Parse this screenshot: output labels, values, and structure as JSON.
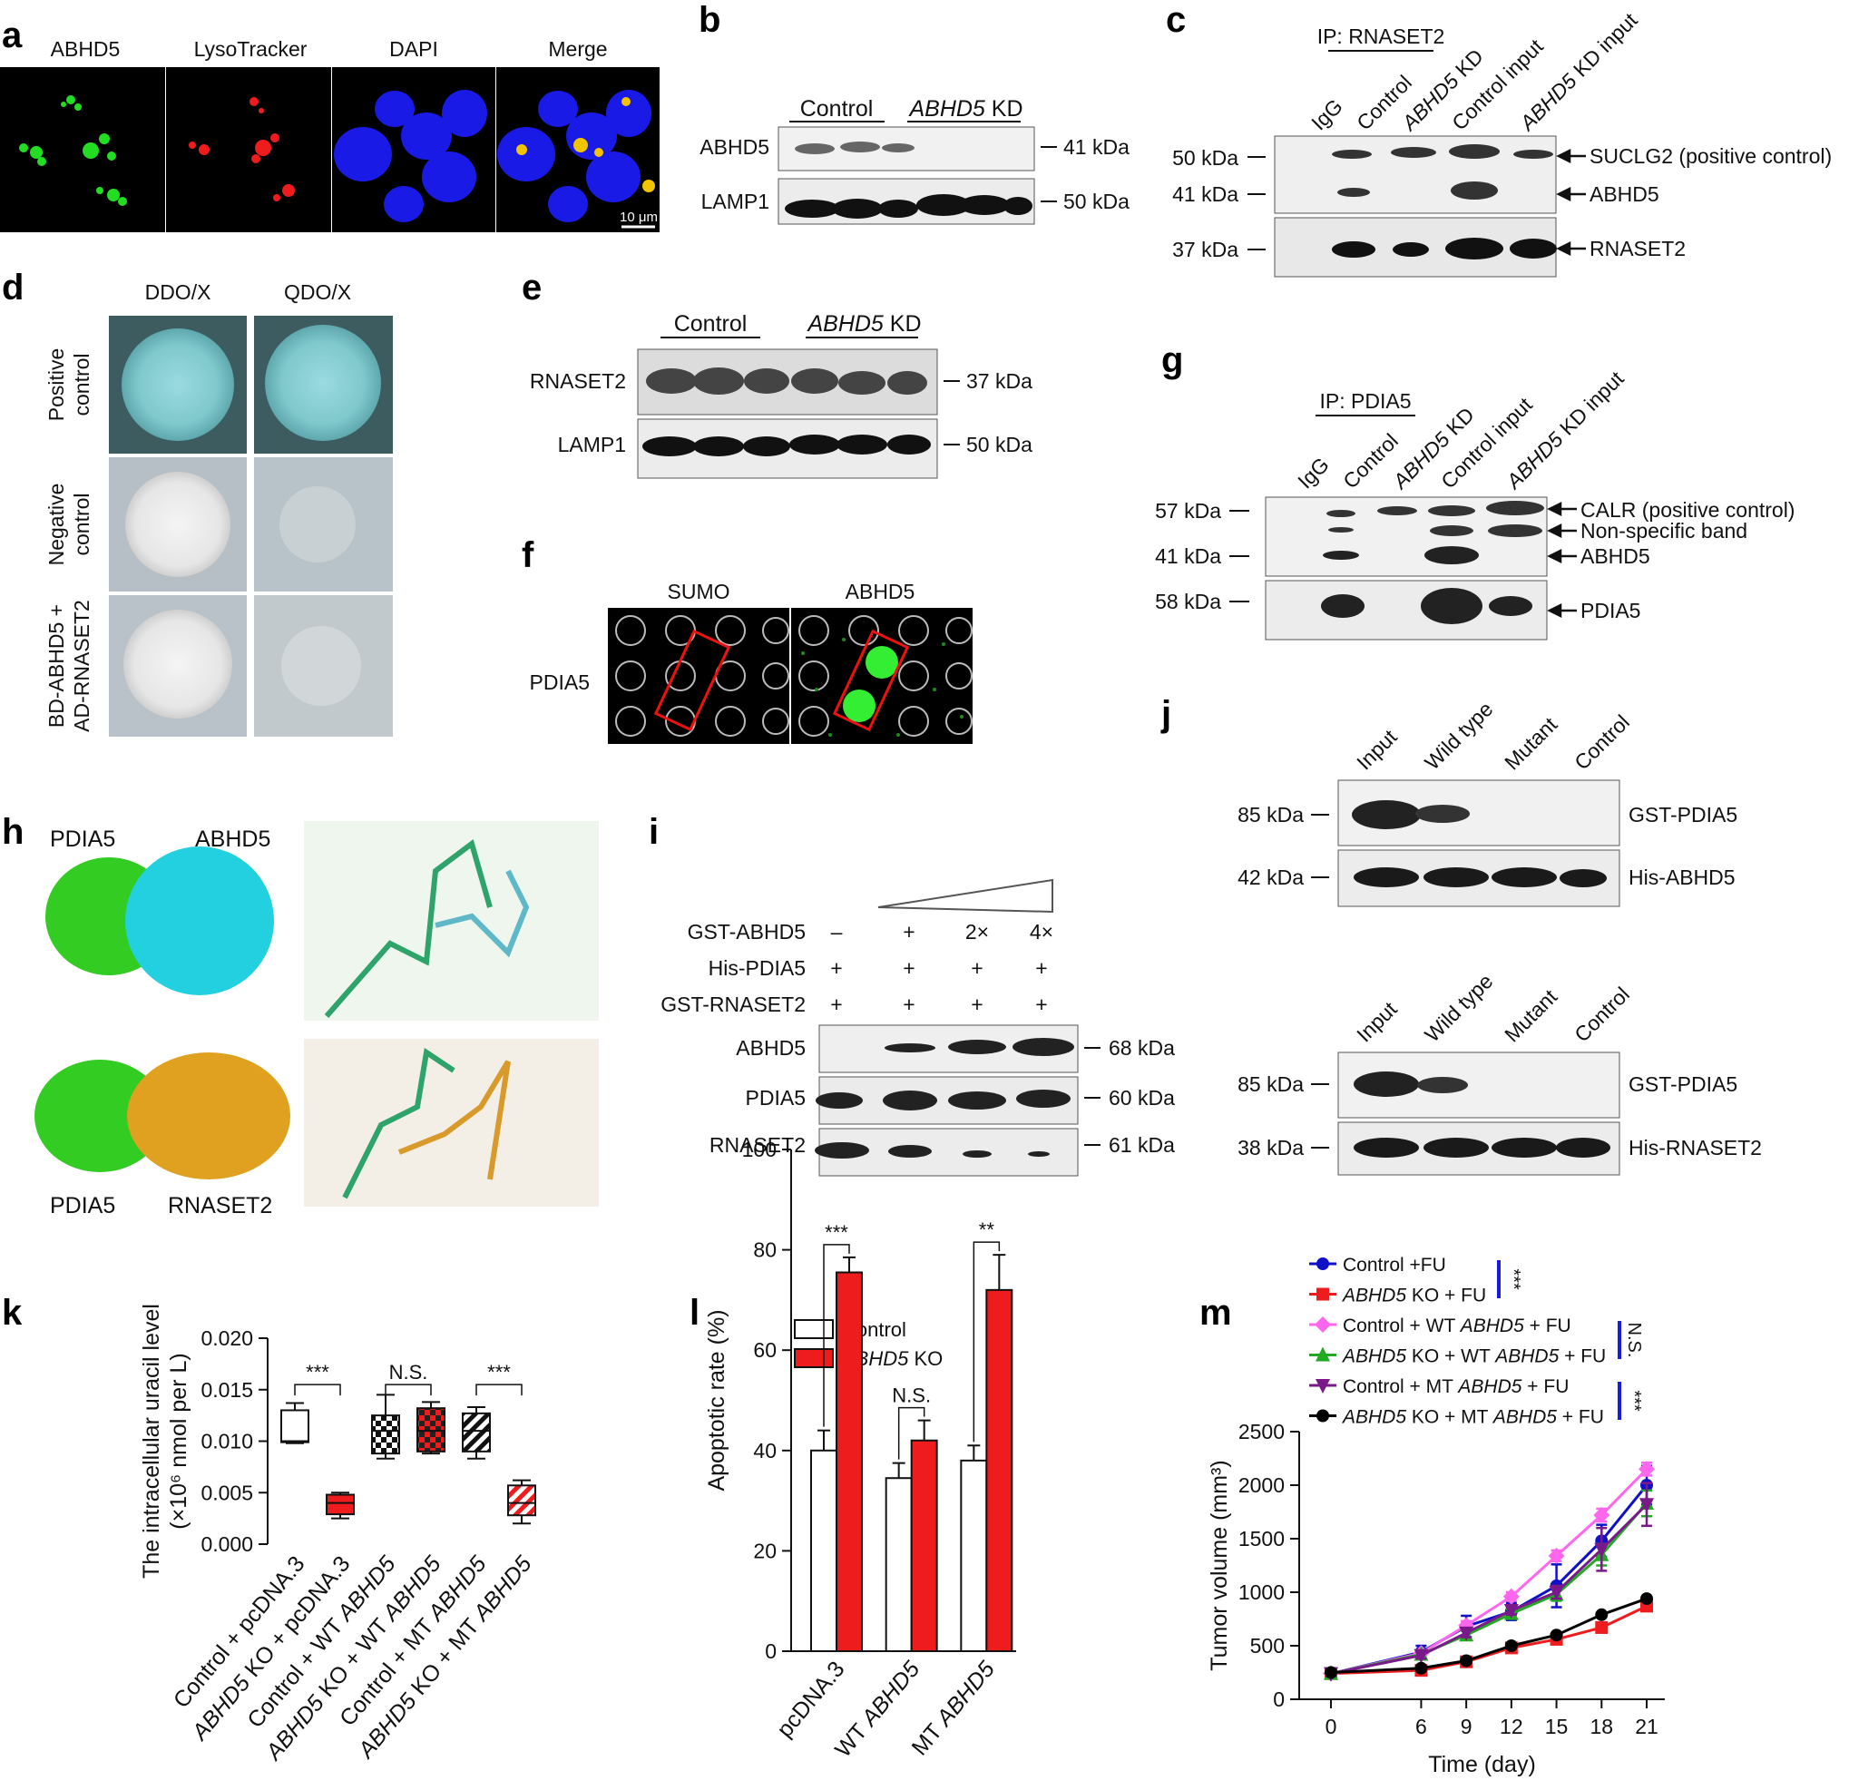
{
  "panel_letters": [
    "a",
    "b",
    "c",
    "d",
    "e",
    "f",
    "g",
    "h",
    "i",
    "j",
    "k",
    "l",
    "m"
  ],
  "a": {
    "channels": [
      {
        "label": "ABHD5",
        "color": "#00dd00"
      },
      {
        "label": "LysoTracker",
        "color": "#ff2020"
      },
      {
        "label": "DAPI",
        "color": "#1a1aff"
      },
      {
        "label": "Merge",
        "color": "#f0b400"
      }
    ],
    "scale_bar": "10 μm"
  },
  "b": {
    "group1": "Control",
    "group2": "ABHD5",
    "group2_suffix": " KD",
    "rows": [
      {
        "label": "ABHD5",
        "mw": "41 kDa"
      },
      {
        "label": "LAMP1",
        "mw": "50 kDa"
      }
    ]
  },
  "c": {
    "ip": "IP: RNASET2",
    "lanes": [
      "IgG",
      "Control",
      "ABHD5 KD",
      "Control input",
      "ABHD5 KD input"
    ],
    "mw": [
      "50 kDa",
      "41 kDa",
      "37 kDa"
    ],
    "bands": [
      "SUCLG2 (positive control)",
      "ABHD5",
      "RNASET2"
    ]
  },
  "d": {
    "cols": [
      "DDO/X",
      "QDO/X"
    ],
    "rows": [
      [
        "Positive",
        "control"
      ],
      [
        "Negative",
        "control"
      ],
      [
        "BD-ABHD5 +",
        "AD-RNASET2"
      ]
    ]
  },
  "e": {
    "group1": "Control",
    "group2": "ABHD5",
    "group2_suffix": " KD",
    "rows": [
      {
        "label": "RNASET2",
        "mw": "37 kDa"
      },
      {
        "label": "LAMP1",
        "mw": "50 kDa"
      }
    ]
  },
  "f": {
    "cols": [
      "SUMO",
      "ABHD5"
    ],
    "row": "PDIA5"
  },
  "g": {
    "ip": "IP: PDIA5",
    "lanes": [
      "IgG",
      "Control",
      "ABHD5 KD",
      "Control input",
      "ABHD5 KD input"
    ],
    "mw": [
      "57 kDa",
      "41 kDa",
      "58 kDa"
    ],
    "bands": [
      "CALR (positive control)",
      "Non-specific band",
      "ABHD5",
      "PDIA5"
    ]
  },
  "h": {
    "labels": [
      "PDIA5",
      "ABHD5",
      "PDIA5",
      "RNASET2"
    ],
    "colors": {
      "pdia5": "#33cc22",
      "abhd5": "#22d0e0",
      "rnaset2": "#e0a020"
    }
  },
  "i": {
    "rows": [
      {
        "label": "GST-ABHD5",
        "vals": [
          "–",
          "+",
          "2×",
          "4×"
        ]
      },
      {
        "label": "His-PDIA5",
        "vals": [
          "+",
          "+",
          "+",
          "+"
        ]
      },
      {
        "label": "GST-RNASET2",
        "vals": [
          "+",
          "+",
          "+",
          "+"
        ]
      }
    ],
    "blots": [
      {
        "label": "ABHD5",
        "mw": "68 kDa"
      },
      {
        "label": "PDIA5",
        "mw": "60 kDa"
      },
      {
        "label": "RNASET2",
        "mw": "61 kDa"
      }
    ]
  },
  "j": {
    "lanes": [
      "Input",
      "Wild type",
      "Mutant",
      "Control"
    ],
    "top": [
      {
        "mw": "85 kDa",
        "label": "GST-PDIA5"
      },
      {
        "mw": "42 kDa",
        "label": "His-ABHD5"
      }
    ],
    "bottom": [
      {
        "mw": "85 kDa",
        "label": "GST-PDIA5"
      },
      {
        "mw": "38 kDa",
        "label": "His-RNASET2"
      }
    ]
  },
  "chart_data": [
    {
      "panel": "k",
      "type": "box",
      "ylabel_line1": "The intracellular uracil level",
      "ylabel_line2": "(×10⁶ nmol per L)",
      "ylim": [
        0,
        0.02
      ],
      "yticks": [
        "0.000",
        "0.005",
        "0.010",
        "0.015",
        "0.020"
      ],
      "categories": [
        "Control + pcDNA.3",
        "ABHD5 KO + pcDNA.3",
        "Control + WT ABHD5",
        "ABHD5 KO + WT ABHD5",
        "Control + MT ABHD5",
        "ABHD5 KO + MT ABHD5"
      ],
      "boxes": [
        {
          "min": 0.0098,
          "q1": 0.0099,
          "median": 0.01,
          "q3": 0.013,
          "max": 0.0137,
          "fill": "open"
        },
        {
          "min": 0.0025,
          "q1": 0.0029,
          "median": 0.004,
          "q3": 0.0048,
          "max": 0.005,
          "fill": "red"
        },
        {
          "min": 0.0083,
          "q1": 0.0088,
          "median": 0.011,
          "q3": 0.0125,
          "max": 0.0145,
          "fill": "check-black"
        },
        {
          "min": 0.0088,
          "q1": 0.009,
          "median": 0.011,
          "q3": 0.0132,
          "max": 0.0138,
          "fill": "check-red"
        },
        {
          "min": 0.0083,
          "q1": 0.009,
          "median": 0.011,
          "q3": 0.0127,
          "max": 0.0133,
          "fill": "hatch-black"
        },
        {
          "min": 0.002,
          "q1": 0.0028,
          "median": 0.004,
          "q3": 0.0057,
          "max": 0.0062,
          "fill": "hatch-red"
        }
      ],
      "significance": [
        "***",
        "N.S.",
        "***"
      ]
    },
    {
      "panel": "l",
      "type": "bar",
      "ylabel": "Apoptotic rate (%)",
      "ylim": [
        0,
        100
      ],
      "yticks": [
        "0",
        "20",
        "40",
        "60",
        "80",
        "100"
      ],
      "categories": [
        "pcDNA.3",
        "WT ABHD5",
        "MT ABHD5"
      ],
      "series": [
        {
          "name": "Control",
          "values": [
            40,
            34.5,
            38
          ],
          "errors": [
            4,
            3,
            3
          ],
          "color": "#ffffff"
        },
        {
          "name": "ABHD5 KO",
          "values": [
            75.5,
            42,
            72
          ],
          "errors": [
            3,
            4,
            7
          ],
          "color": "#ee1c1c"
        }
      ],
      "significance": [
        "***",
        "N.S.",
        "**"
      ]
    },
    {
      "panel": "m",
      "type": "line",
      "xlabel": "Time (day)",
      "ylabel": "Tumor volume (mm³)",
      "x": [
        0,
        6,
        9,
        12,
        15,
        18,
        21
      ],
      "ylim": [
        0,
        2500
      ],
      "yticks": [
        "0",
        "500",
        "1000",
        "1500",
        "2000",
        "2500"
      ],
      "series": [
        {
          "name": "Control +FU",
          "color": "#1010c8",
          "marker": "circle",
          "values": [
            240,
            440,
            680,
            820,
            1060,
            1480,
            2000
          ],
          "errors": [
            20,
            60,
            100,
            80,
            200,
            150,
            180
          ]
        },
        {
          "name": "ABHD5 KO + FU",
          "color": "#ee1c1c",
          "marker": "square",
          "values": [
            240,
            270,
            350,
            480,
            560,
            670,
            870
          ],
          "errors": [
            20,
            20,
            30,
            40,
            30,
            30,
            40
          ]
        },
        {
          "name": "Control + WT ABHD5 + FU",
          "color": "#ff66ee",
          "marker": "diamond",
          "values": [
            240,
            430,
            690,
            960,
            1340,
            1720,
            2150
          ],
          "errors": [
            20,
            30,
            40,
            40,
            50,
            60,
            60
          ]
        },
        {
          "name": "ABHD5 KO + WT ABHD5 + FU",
          "color": "#22aa22",
          "marker": "triangle",
          "values": [
            240,
            420,
            600,
            800,
            980,
            1350,
            1830
          ],
          "errors": [
            20,
            30,
            40,
            40,
            60,
            100,
            120
          ]
        },
        {
          "name": "Control + MT ABHD5 + FU",
          "color": "#7a1a8a",
          "marker": "triangle-down",
          "values": [
            240,
            410,
            620,
            830,
            1000,
            1400,
            1820
          ],
          "errors": [
            20,
            30,
            40,
            40,
            60,
            200,
            200
          ]
        },
        {
          "name": "ABHD5 KO + MT ABHD5 + FU",
          "color": "#000000",
          "marker": "circle",
          "values": [
            250,
            290,
            360,
            500,
            600,
            790,
            940
          ],
          "errors": [
            10,
            10,
            20,
            20,
            20,
            20,
            20
          ]
        }
      ],
      "significance": [
        "***",
        "N.S.",
        "***"
      ]
    }
  ]
}
